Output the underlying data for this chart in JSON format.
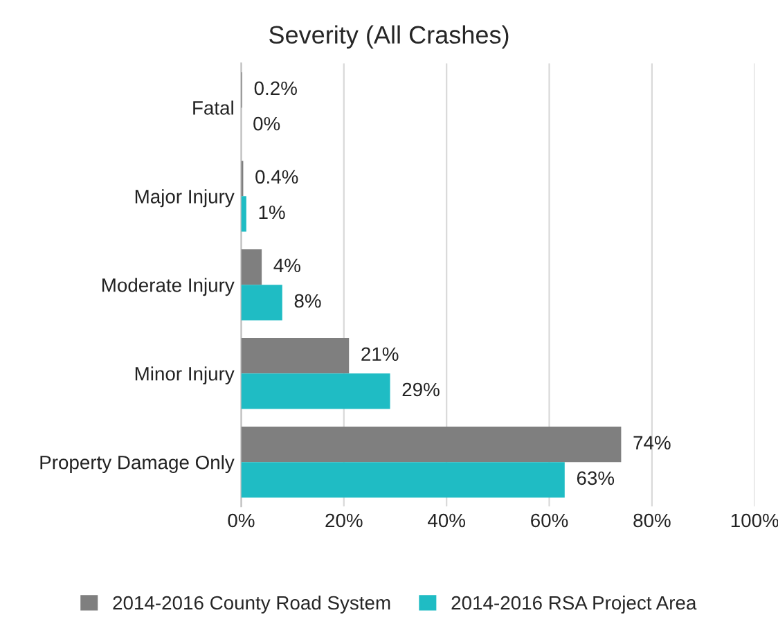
{
  "chart_data": {
    "type": "bar",
    "orientation": "horizontal",
    "title": "Severity (All Crashes)",
    "categories": [
      "Fatal",
      "Major Injury",
      "Moderate Injury",
      "Minor Injury",
      "Property Damage Only"
    ],
    "series": [
      {
        "name": "2014-2016 County Road System",
        "color": "#7f7f7f",
        "values": [
          0.2,
          0.4,
          4,
          21,
          74
        ],
        "value_labels": [
          "0.2%",
          "0.4%",
          "4%",
          "21%",
          "74%"
        ]
      },
      {
        "name": "2014-2016 RSA Project Area",
        "color": "#1fbcc4",
        "values": [
          0,
          1,
          8,
          29,
          63
        ],
        "value_labels": [
          "0%",
          "1%",
          "8%",
          "29%",
          "63%"
        ]
      }
    ],
    "xlim": [
      0,
      100
    ],
    "xticks": [
      {
        "value": 0,
        "label": "0%"
      },
      {
        "value": 20,
        "label": "20%"
      },
      {
        "value": 40,
        "label": "40%"
      },
      {
        "value": 60,
        "label": "60%"
      },
      {
        "value": 80,
        "label": "80%"
      },
      {
        "value": 100,
        "label": "100%"
      }
    ],
    "grid": "x",
    "legend": "bottom"
  }
}
